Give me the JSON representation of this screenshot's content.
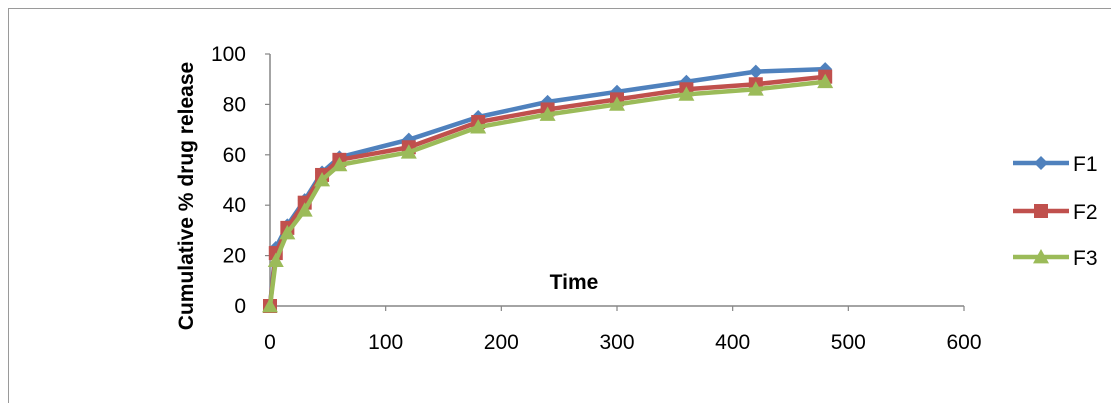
{
  "chart_data": {
    "type": "line",
    "title": "",
    "xlabel": "Time",
    "ylabel": "Cumulative % drug release",
    "xlim": [
      0,
      600
    ],
    "ylim": [
      0,
      100
    ],
    "xticks": [
      "0",
      "100",
      "200",
      "300",
      "400",
      "500",
      "600"
    ],
    "yticks": [
      "0",
      "20",
      "40",
      "60",
      "80",
      "100"
    ],
    "grid": false,
    "legend_position": "right",
    "x": [
      0,
      5,
      15,
      30,
      45,
      60,
      120,
      180,
      240,
      300,
      360,
      420,
      480
    ],
    "series": [
      {
        "name": "F1",
        "color": "#4F81BD",
        "marker": "diamond",
        "values": [
          0,
          23,
          32,
          42,
          53,
          59,
          66,
          75,
          81,
          85,
          89,
          93,
          94
        ]
      },
      {
        "name": "F2",
        "color": "#C0504D",
        "marker": "square",
        "values": [
          0,
          21,
          31,
          41,
          52,
          58,
          63,
          73,
          78,
          82,
          86,
          88,
          91
        ]
      },
      {
        "name": "F3",
        "color": "#9BBB59",
        "marker": "triangle",
        "values": [
          0,
          18,
          29,
          38,
          50,
          56,
          61,
          71,
          76,
          80,
          84,
          86,
          89
        ]
      }
    ]
  }
}
